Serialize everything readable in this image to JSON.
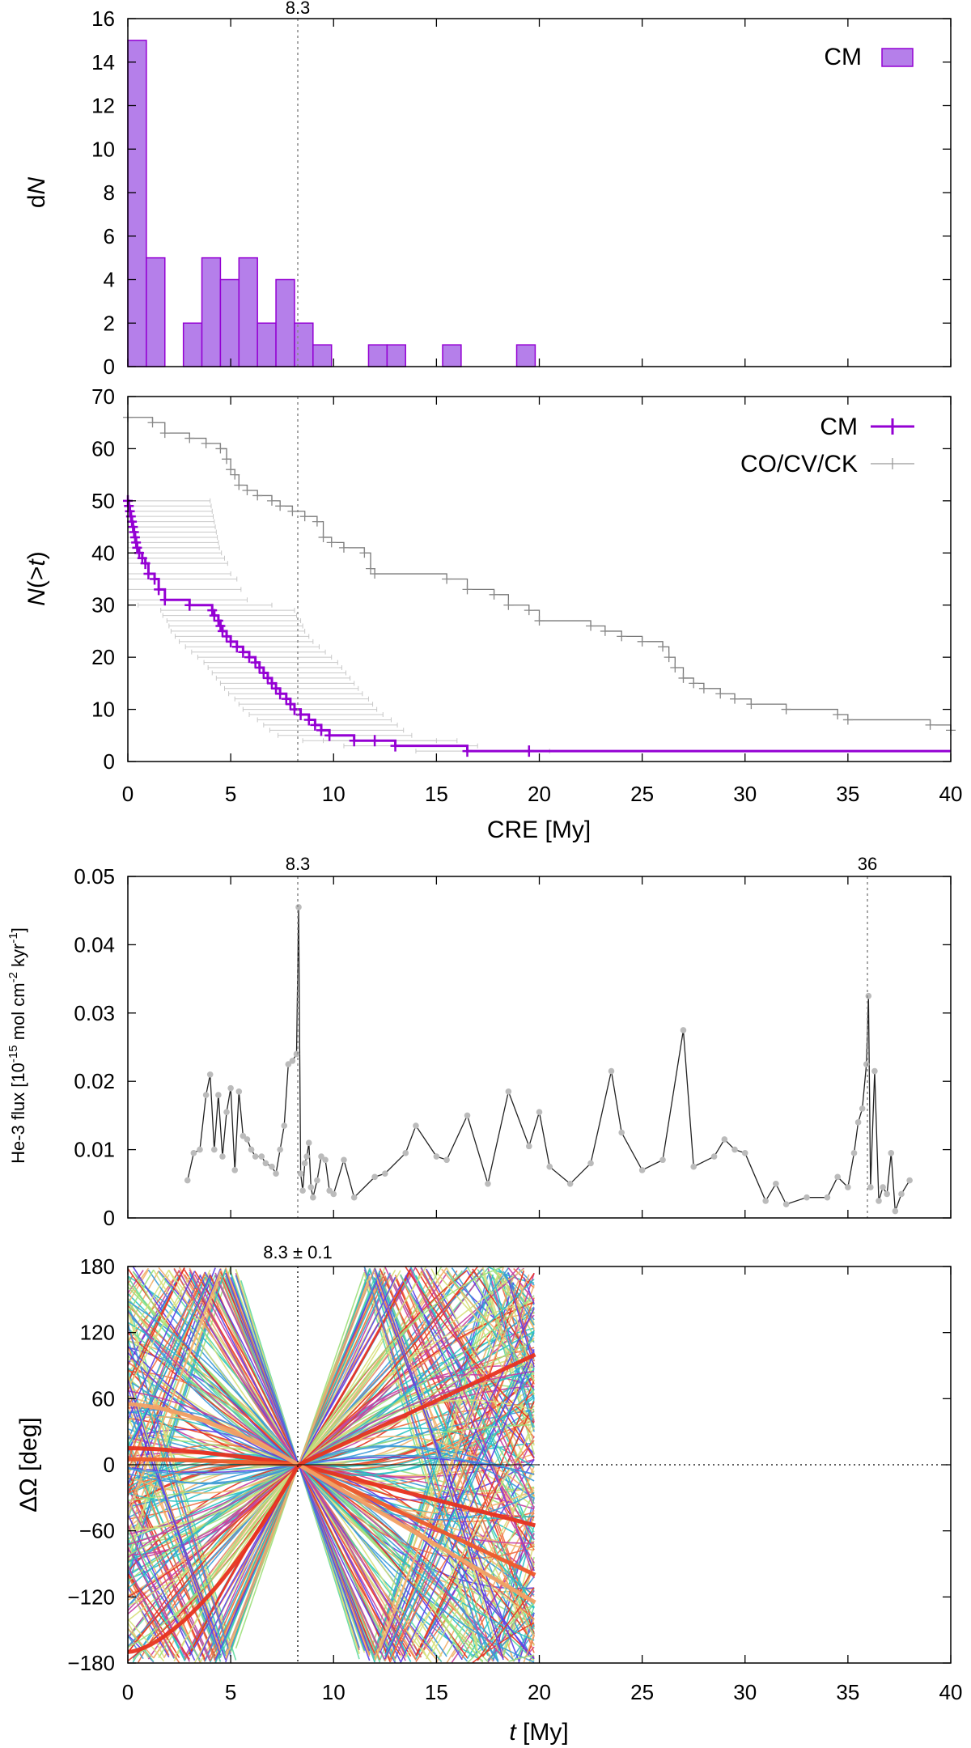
{
  "chart_data": [
    {
      "type": "bar",
      "panel": "histogram",
      "ylabel": "dN",
      "xlim": [
        0,
        40
      ],
      "ylim": [
        0,
        16
      ],
      "bin_width": 0.9,
      "bin_starts": [
        0,
        0.9,
        1.8,
        2.7,
        3.6,
        4.5,
        5.4,
        6.3,
        7.2,
        8.1,
        9.0,
        9.9,
        10.8,
        11.7,
        12.6,
        13.5,
        14.4,
        15.3,
        16.2,
        17.1,
        18.0,
        18.9
      ],
      "values": [
        15,
        5,
        0,
        2,
        5,
        4,
        5,
        2,
        4,
        2,
        1,
        0,
        0,
        1,
        1,
        0,
        0,
        1,
        0,
        0,
        0,
        1
      ],
      "legend": [
        "CM"
      ],
      "series_color": "#b57fea",
      "series_edge": "#9400d3",
      "yticks": [
        "0",
        "2",
        "4",
        "6",
        "8",
        "10",
        "12",
        "14",
        "16"
      ],
      "annotation": "8.3",
      "vline": 8.3
    },
    {
      "type": "line",
      "panel": "cumulative",
      "ylabel": "N(>t)",
      "xlabel": "CRE [My]",
      "xlim": [
        0,
        40
      ],
      "ylim": [
        0,
        70
      ],
      "xticks": [
        "0",
        "5",
        "10",
        "15",
        "20",
        "25",
        "30",
        "35",
        "40"
      ],
      "yticks": [
        "0",
        "10",
        "20",
        "30",
        "40",
        "50",
        "60",
        "70"
      ],
      "legend": [
        "CM",
        "CO/CV/CK"
      ],
      "series": [
        {
          "name": "CM",
          "color": "#9400d3",
          "x": [
            0.0,
            0.05,
            0.1,
            0.15,
            0.2,
            0.25,
            0.3,
            0.35,
            0.4,
            0.45,
            0.55,
            0.7,
            0.85,
            1.0,
            1.3,
            1.5,
            1.8,
            3.0,
            4.1,
            4.2,
            4.4,
            4.5,
            4.6,
            4.8,
            5.0,
            5.3,
            5.6,
            5.9,
            6.2,
            6.4,
            6.6,
            6.8,
            7.0,
            7.2,
            7.4,
            7.7,
            7.9,
            8.1,
            8.4,
            8.8,
            9.1,
            9.4,
            9.8,
            11.0,
            12.0,
            13.0,
            16.5,
            19.5,
            40.0
          ],
          "y": [
            50,
            49,
            48,
            47,
            46,
            45,
            44,
            43,
            42,
            41,
            40,
            39,
            38,
            36,
            35,
            33,
            31,
            30,
            29,
            28,
            27,
            26,
            25,
            24,
            23,
            22,
            21,
            20,
            19,
            18,
            17,
            16,
            15,
            14,
            13,
            12,
            11,
            10,
            9,
            8,
            7,
            6,
            5,
            4,
            4,
            3,
            2,
            2,
            2
          ],
          "error_bar_offsets": [
            -2.5,
            4.0
          ]
        },
        {
          "name": "CO/CV/CK",
          "color": "#888888",
          "x": [
            0.0,
            1.2,
            1.8,
            3.0,
            3.8,
            4.5,
            4.8,
            5.0,
            5.2,
            5.4,
            5.8,
            6.3,
            7.0,
            7.4,
            8.0,
            8.6,
            9.2,
            9.5,
            9.9,
            10.5,
            11.5,
            11.8,
            12.0,
            15.5,
            16.5,
            17.8,
            18.5,
            19.5,
            20.0,
            22.5,
            23.2,
            24.0,
            25.0,
            26.0,
            26.3,
            26.6,
            27.0,
            27.5,
            28.0,
            28.8,
            29.5,
            30.3,
            32.0,
            34.5,
            35.0,
            39.0,
            40.0
          ],
          "y": [
            66,
            65,
            63,
            62,
            61,
            60,
            58,
            56,
            55,
            53,
            52,
            51,
            50,
            49,
            48,
            47,
            46,
            43,
            42,
            41,
            40,
            37,
            36,
            35,
            33,
            32,
            30,
            29,
            27,
            26,
            25,
            24,
            23,
            22,
            20,
            18,
            16,
            15,
            14,
            13,
            12,
            11,
            10,
            9,
            8,
            7,
            6
          ]
        }
      ],
      "vline": 8.3
    },
    {
      "type": "line",
      "panel": "flux",
      "ylabel": "He-3 flux [10^-15 mol cm^-2 kyr^-1]",
      "ylabel_parts": [
        "He-3 flux [10",
        "-15",
        " mol cm",
        "-2",
        " kyr",
        "-1",
        "]"
      ],
      "xlim": [
        0,
        40
      ],
      "ylim": [
        0,
        0.05
      ],
      "yticks": [
        "0",
        "0.01",
        "0.02",
        "0.03",
        "0.04",
        "0.05"
      ],
      "annotations": [
        "8.3",
        "36"
      ],
      "vlines": [
        8.3,
        36.0
      ],
      "series": [
        {
          "name": "He-3 flux",
          "color": "#222222",
          "marker_color": "#bbbbbb",
          "x": [
            2.9,
            3.2,
            3.5,
            3.8,
            4.0,
            4.2,
            4.4,
            4.6,
            4.8,
            5.0,
            5.2,
            5.4,
            5.6,
            5.8,
            6.0,
            6.2,
            6.5,
            6.7,
            7.0,
            7.2,
            7.4,
            7.6,
            7.8,
            8.0,
            8.2,
            8.3,
            8.4,
            8.5,
            8.6,
            8.7,
            8.8,
            8.9,
            9.0,
            9.2,
            9.4,
            9.6,
            9.8,
            10.0,
            10.5,
            11.0,
            12.0,
            12.5,
            13.5,
            14.0,
            15.0,
            15.5,
            16.5,
            17.5,
            18.5,
            19.5,
            20.0,
            20.5,
            21.5,
            22.5,
            23.5,
            24.0,
            25.0,
            26.0,
            27.0,
            27.5,
            28.5,
            29.0,
            29.5,
            30.0,
            31.0,
            31.5,
            32.0,
            33.0,
            34.0,
            34.5,
            35.0,
            35.3,
            35.5,
            35.7,
            35.9,
            36.0,
            36.1,
            36.3,
            36.5,
            36.7,
            36.9,
            37.1,
            37.3,
            37.6,
            38.0
          ],
          "y": [
            0.0055,
            0.0095,
            0.01,
            0.018,
            0.021,
            0.01,
            0.018,
            0.009,
            0.0155,
            0.019,
            0.007,
            0.0185,
            0.012,
            0.0115,
            0.01,
            0.009,
            0.009,
            0.008,
            0.0075,
            0.0065,
            0.01,
            0.0135,
            0.0225,
            0.023,
            0.024,
            0.0455,
            0.0065,
            0.004,
            0.008,
            0.009,
            0.011,
            0.0045,
            0.003,
            0.0055,
            0.009,
            0.0085,
            0.004,
            0.0035,
            0.0085,
            0.003,
            0.006,
            0.0065,
            0.0095,
            0.0135,
            0.009,
            0.0085,
            0.015,
            0.005,
            0.0185,
            0.0105,
            0.0155,
            0.0075,
            0.005,
            0.008,
            0.0215,
            0.0125,
            0.007,
            0.0085,
            0.0275,
            0.0075,
            0.009,
            0.0115,
            0.01,
            0.0095,
            0.0025,
            0.005,
            0.002,
            0.003,
            0.003,
            0.006,
            0.0045,
            0.0095,
            0.014,
            0.016,
            0.0225,
            0.0325,
            0.0045,
            0.0215,
            0.0025,
            0.0045,
            0.0035,
            0.0095,
            0.001,
            0.0035,
            0.0055
          ]
        }
      ]
    },
    {
      "type": "line",
      "panel": "node-convergence",
      "ylabel": "ΔΩ [deg]",
      "xlabel": "t [My]",
      "xlim": [
        0,
        40
      ],
      "ylim": [
        -180,
        180
      ],
      "xticks": [
        "0",
        "5",
        "10",
        "15",
        "20",
        "25",
        "30",
        "35",
        "40"
      ],
      "yticks": [
        "180",
        "120",
        "60",
        "0",
        "−60",
        "−120",
        "−180"
      ],
      "annotation": "8.3 ± 0.1",
      "convergence_time": 8.3,
      "t_max": 19.8,
      "palette": [
        "#5a3fe8",
        "#3a9ad9",
        "#27c1c4",
        "#5fd9a0",
        "#9de07b",
        "#d7e07b",
        "#f2b06a",
        "#ef6b40",
        "#e8331f",
        "#c73da0"
      ],
      "num_tracks": 220,
      "highlight_tracks": [
        {
          "name": "track-a",
          "color": "#e8331f",
          "start_offset": 15,
          "end_offset": -55
        },
        {
          "name": "track-b",
          "color": "#ef5a2a",
          "start_offset": 5,
          "end_offset": -100
        },
        {
          "name": "track-c",
          "color": "#f2a064",
          "start_offset": 55,
          "end_offset": -125
        },
        {
          "name": "track-d",
          "color": "#e8331f",
          "start_offset": -170,
          "end_offset": 100
        }
      ]
    }
  ]
}
